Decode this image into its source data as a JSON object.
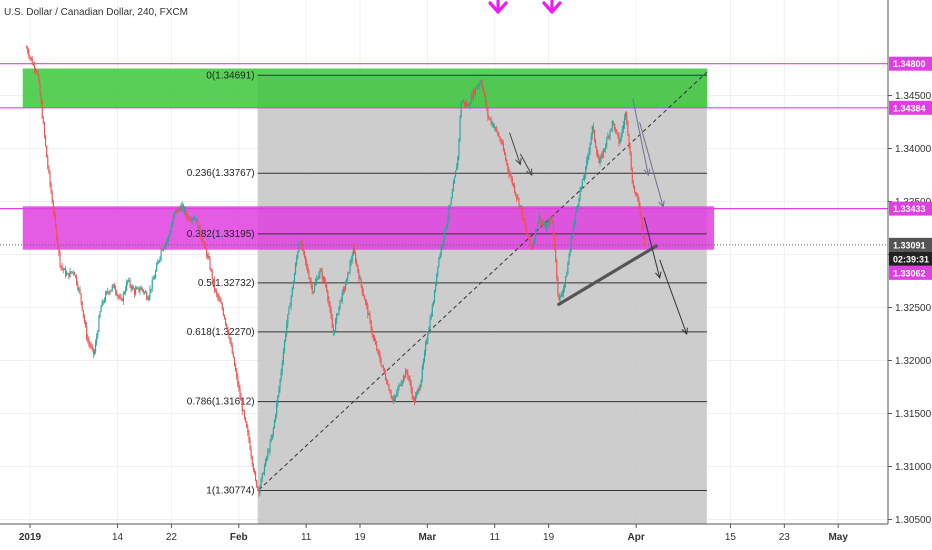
{
  "chart_data": {
    "type": "candlestick",
    "title": "U.S. Dollar / Canadian Dollar, 240, FXCM",
    "ylim": [
      1.3045,
      1.3495
    ],
    "y_ticks": [
      1.305,
      1.31,
      1.315,
      1.32,
      1.325,
      1.33,
      1.335,
      1.34,
      1.345
    ],
    "y_tick_labels": [
      "1.30500",
      "1.31000",
      "1.31500",
      "1.32000",
      "1.32500",
      "1.33000",
      "1.33500",
      "1.34000",
      "1.34500"
    ],
    "x_ticks": [
      {
        "label": "2019",
        "day": 0
      },
      {
        "label": "14",
        "day": 13
      },
      {
        "label": "22",
        "day": 21
      },
      {
        "label": "Feb",
        "day": 31
      },
      {
        "label": "11",
        "day": 41
      },
      {
        "label": "19",
        "day": 49
      },
      {
        "label": "Mar",
        "day": 59
      },
      {
        "label": "11",
        "day": 69
      },
      {
        "label": "19",
        "day": 77
      },
      {
        "label": "Apr",
        "day": 90
      },
      {
        "label": "15",
        "day": 104
      },
      {
        "label": "23",
        "day": 112
      },
      {
        "label": "May",
        "day": 120
      }
    ],
    "price_path": [
      [
        -0.5,
        1.3495
      ],
      [
        0.5,
        1.3478
      ],
      [
        1.0,
        1.3475
      ],
      [
        1.5,
        1.345
      ],
      [
        2.5,
        1.339
      ],
      [
        3.5,
        1.334
      ],
      [
        4.5,
        1.329
      ],
      [
        5.5,
        1.328
      ],
      [
        6.5,
        1.3285
      ],
      [
        7.5,
        1.326
      ],
      [
        8.5,
        1.322
      ],
      [
        9.5,
        1.3205
      ],
      [
        10.5,
        1.325
      ],
      [
        11.5,
        1.3265
      ],
      [
        12.5,
        1.327
      ],
      [
        13.5,
        1.3255
      ],
      [
        14.5,
        1.3275
      ],
      [
        15.5,
        1.3265
      ],
      [
        16.5,
        1.3268
      ],
      [
        17.5,
        1.326
      ],
      [
        18.5,
        1.328
      ],
      [
        19.5,
        1.3305
      ],
      [
        20.5,
        1.3315
      ],
      [
        21.5,
        1.334
      ],
      [
        22.5,
        1.3345
      ],
      [
        23.5,
        1.3335
      ],
      [
        24.5,
        1.3335
      ],
      [
        25.5,
        1.3315
      ],
      [
        26.5,
        1.3295
      ],
      [
        27.5,
        1.3265
      ],
      [
        28.5,
        1.325
      ],
      [
        29.5,
        1.3225
      ],
      [
        30.5,
        1.319
      ],
      [
        31.5,
        1.3155
      ],
      [
        32.5,
        1.3125
      ],
      [
        33.5,
        1.3085
      ],
      [
        34.0,
        1.3078
      ],
      [
        35.0,
        1.3105
      ],
      [
        36.0,
        1.313
      ],
      [
        37.0,
        1.3175
      ],
      [
        38.0,
        1.323
      ],
      [
        39.0,
        1.327
      ],
      [
        40.0,
        1.3315
      ],
      [
        41.0,
        1.329
      ],
      [
        42.0,
        1.3265
      ],
      [
        43.0,
        1.3285
      ],
      [
        44.0,
        1.327
      ],
      [
        45.0,
        1.3225
      ],
      [
        46.0,
        1.3255
      ],
      [
        47.0,
        1.3275
      ],
      [
        48.0,
        1.3305
      ],
      [
        49.0,
        1.3275
      ],
      [
        50.0,
        1.325
      ],
      [
        51.0,
        1.322
      ],
      [
        52.0,
        1.32
      ],
      [
        53.0,
        1.318
      ],
      [
        54.0,
        1.316
      ],
      [
        55.0,
        1.318
      ],
      [
        56.0,
        1.319
      ],
      [
        57.0,
        1.316
      ],
      [
        58.0,
        1.318
      ],
      [
        59.0,
        1.3225
      ],
      [
        60.0,
        1.326
      ],
      [
        60.5,
        1.329
      ],
      [
        61.5,
        1.332
      ],
      [
        62.5,
        1.335
      ],
      [
        63.5,
        1.339
      ],
      [
        64.0,
        1.3445
      ],
      [
        65.0,
        1.344
      ],
      [
        66.0,
        1.3455
      ],
      [
        67.0,
        1.3465
      ],
      [
        68.0,
        1.343
      ],
      [
        69.0,
        1.342
      ],
      [
        70.0,
        1.3405
      ],
      [
        71.0,
        1.338
      ],
      [
        72.0,
        1.336
      ],
      [
        72.8,
        1.3345
      ],
      [
        73.5,
        1.3325
      ],
      [
        74.5,
        1.3305
      ],
      [
        75.5,
        1.3335
      ],
      [
        76.5,
        1.3325
      ],
      [
        77.5,
        1.3335
      ],
      [
        78.0,
        1.3298
      ],
      [
        78.5,
        1.3255
      ],
      [
        79.5,
        1.3275
      ],
      [
        80.5,
        1.332
      ],
      [
        81.5,
        1.3355
      ],
      [
        82.5,
        1.338
      ],
      [
        83.5,
        1.342
      ],
      [
        84.5,
        1.3385
      ],
      [
        85.5,
        1.3405
      ],
      [
        86.5,
        1.3425
      ],
      [
        87.5,
        1.3405
      ],
      [
        88.5,
        1.3435
      ],
      [
        89.5,
        1.3365
      ],
      [
        90.5,
        1.3345
      ],
      [
        91.3,
        1.3309
      ]
    ],
    "last_price": 1.33091,
    "last_price_label": "1.33091",
    "countdown_label": "02:39:31",
    "second_price_label": "1.33062",
    "horizontal_levels": [
      {
        "price": 1.348,
        "label": "1.34800",
        "color": "#e040e0"
      },
      {
        "price": 1.34384,
        "label": "1.34384",
        "color": "#e040e0"
      },
      {
        "price": 1.33433,
        "label": "1.33433",
        "color": "#e040e0"
      }
    ],
    "fibonacci": {
      "day_start": 33.8,
      "day_end": 100.5,
      "levels": [
        {
          "price": 1.34691,
          "label": "0(1.34691)"
        },
        {
          "price": 1.33767,
          "label": "0.236(1.33767)"
        },
        {
          "price": 1.33195,
          "label": "0.382(1.33195)"
        },
        {
          "price": 1.32732,
          "label": "0.5(1.32732)"
        },
        {
          "price": 1.3227,
          "label": "0.618(1.32270)"
        },
        {
          "price": 1.31612,
          "label": "0.786(1.31612)"
        },
        {
          "price": 1.30774,
          "label": "1(1.30774)"
        }
      ]
    },
    "zones": [
      {
        "name": "supply",
        "color": "#3cc83c",
        "day_start": -1,
        "day_end": 100.5,
        "price_top": 1.3475,
        "price_bottom": 1.3439
      },
      {
        "name": "pivot",
        "color": "#e040e0",
        "day_start": -1,
        "day_end": 101.5,
        "price_top": 1.3345,
        "price_bottom": 1.3305
      }
    ],
    "trendline": {
      "day1": 34.0,
      "price1": 1.3078,
      "day2": 100.5,
      "price2": 1.3472
    },
    "support_line": {
      "day1": 78.5,
      "price1": 1.3253,
      "day2": 93.0,
      "price2": 1.3308
    },
    "arrows": [
      {
        "day1": 71.2,
        "price1": 1.3415,
        "day2": 72.8,
        "price2": 1.3385,
        "color": "#444444"
      },
      {
        "day1": 72.8,
        "price1": 1.3395,
        "day2": 74.5,
        "price2": 1.3375,
        "color": "#444444"
      },
      {
        "day1": 89.5,
        "price1": 1.3447,
        "day2": 91.8,
        "price2": 1.3375,
        "color": "#707090"
      },
      {
        "day1": 90.5,
        "price1": 1.3425,
        "day2": 94.0,
        "price2": 1.3345,
        "color": "#707090"
      },
      {
        "day1": 91.2,
        "price1": 1.3335,
        "day2": 93.5,
        "price2": 1.3278,
        "color": "#333333"
      },
      {
        "day1": 93.5,
        "price1": 1.3295,
        "day2": 97.5,
        "price2": 1.3225,
        "color": "#333333"
      }
    ],
    "top_markers": [
      {
        "day": 69.5
      },
      {
        "day": 77.5
      }
    ],
    "colors": {
      "up": "#26a69a",
      "down": "#ef5350",
      "fib_region": "#c8c8c8",
      "pivot_tag": "#e040e0",
      "last_tag": "#555555",
      "countdown_tag": "#222222"
    }
  }
}
